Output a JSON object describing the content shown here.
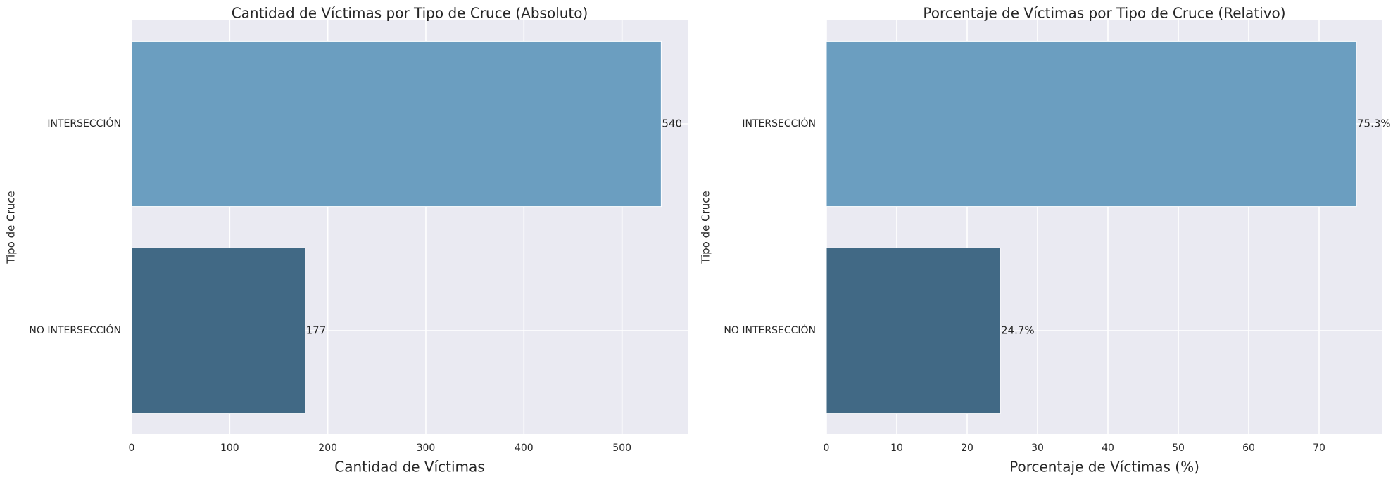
{
  "chart_data": [
    {
      "type": "bar",
      "orientation": "horizontal",
      "title": "Cantidad de Víctimas por Tipo de Cruce (Absoluto)",
      "xlabel": "Cantidad de Víctimas",
      "ylabel": "Tipo de Cruce",
      "categories": [
        "INTERSECCIÓN",
        "NO INTERSECCIÓN"
      ],
      "values": [
        540,
        177
      ],
      "data_labels": [
        "540",
        "177"
      ],
      "colors": [
        "#6b9ec0",
        "#416985"
      ],
      "xlim": [
        0,
        567
      ],
      "xticks": [
        0,
        100,
        200,
        300,
        400,
        500
      ],
      "tick_labels": [
        "0",
        "100",
        "200",
        "300",
        "400",
        "500"
      ],
      "grid": true,
      "background": "#eaeaf2"
    },
    {
      "type": "bar",
      "orientation": "horizontal",
      "title": "Porcentaje de Víctimas por Tipo de Cruce (Relativo)",
      "xlabel": "Porcentaje de Víctimas (%)",
      "ylabel": "Tipo de Cruce",
      "categories": [
        "INTERSECCIÓN",
        "NO INTERSECCIÓN"
      ],
      "values": [
        75.3,
        24.7
      ],
      "data_labels": [
        "75.3%",
        "24.7%"
      ],
      "colors": [
        "#6b9ec0",
        "#416985"
      ],
      "xlim": [
        0,
        79
      ],
      "xticks": [
        0,
        10,
        20,
        30,
        40,
        50,
        60,
        70
      ],
      "tick_labels": [
        "0",
        "10",
        "20",
        "30",
        "40",
        "50",
        "60",
        "70"
      ],
      "grid": true,
      "background": "#eaeaf2"
    }
  ]
}
